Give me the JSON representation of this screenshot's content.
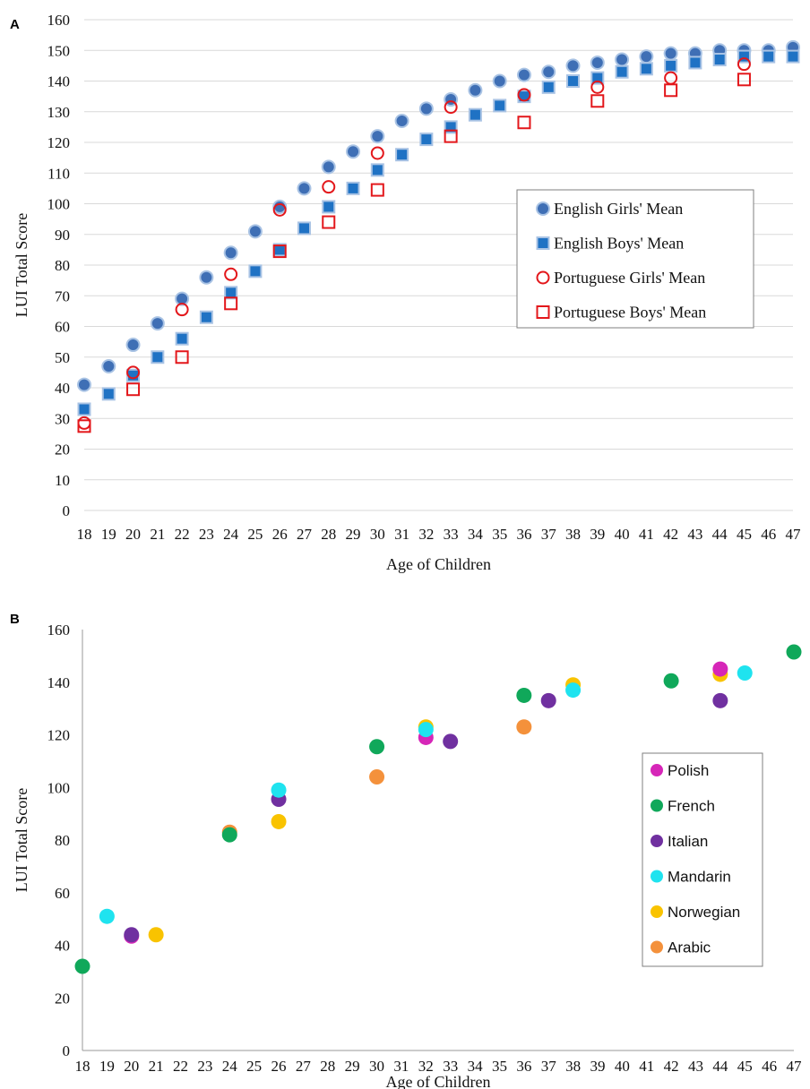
{
  "chart_data": [
    {
      "panel": "A",
      "type": "scatter",
      "xlabel": "Age of Children",
      "ylabel": "LUI Total Score",
      "xlim": [
        18,
        47
      ],
      "ylim": [
        0,
        160
      ],
      "y_ticks": [
        0,
        10,
        20,
        30,
        40,
        50,
        60,
        70,
        80,
        90,
        100,
        110,
        120,
        130,
        140,
        150,
        160
      ],
      "x_ticks": [
        18,
        19,
        20,
        21,
        22,
        23,
        24,
        25,
        26,
        27,
        28,
        29,
        30,
        31,
        32,
        33,
        34,
        35,
        36,
        37,
        38,
        39,
        40,
        41,
        42,
        43,
        44,
        45,
        46,
        47
      ],
      "grid": "horizontal",
      "legend_position": "center-right",
      "series": [
        {
          "name": "English Girls' Mean",
          "marker": "filled-circle",
          "color": "#3f6fb5",
          "x": [
            18,
            19,
            20,
            21,
            22,
            23,
            24,
            25,
            26,
            27,
            28,
            29,
            30,
            31,
            32,
            33,
            34,
            35,
            36,
            37,
            38,
            39,
            40,
            41,
            42,
            43,
            44,
            45,
            46,
            47
          ],
          "y": [
            41,
            47,
            54,
            61,
            69,
            76,
            84,
            91,
            99,
            105,
            112,
            117,
            122,
            127,
            131,
            134,
            137,
            140,
            142,
            143,
            145,
            146,
            147,
            148,
            149,
            149,
            150,
            150,
            150,
            151
          ]
        },
        {
          "name": "English Boys' Mean",
          "marker": "filled-square",
          "color": "#1f72c4",
          "x": [
            18,
            19,
            20,
            21,
            22,
            23,
            24,
            25,
            26,
            27,
            28,
            29,
            30,
            31,
            32,
            33,
            34,
            35,
            36,
            37,
            38,
            39,
            40,
            41,
            42,
            43,
            44,
            45,
            46,
            47
          ],
          "y": [
            33,
            38,
            44,
            50,
            56,
            63,
            71,
            78,
            85,
            92,
            99,
            105,
            111,
            116,
            121,
            125,
            129,
            132,
            135,
            138,
            140,
            141,
            143,
            144,
            145,
            146,
            147,
            148,
            148,
            148
          ]
        },
        {
          "name": "Portuguese Girls' Mean",
          "marker": "open-circle",
          "color": "#e3171b",
          "x": [
            18,
            20,
            22,
            24,
            26,
            28,
            30,
            33,
            36,
            39,
            42,
            45
          ],
          "y": [
            28.5,
            45,
            65.5,
            77,
            98,
            105.5,
            116.5,
            131.5,
            135.5,
            138,
            141,
            145.5
          ]
        },
        {
          "name": "Portuguese Boys' Mean",
          "marker": "open-square",
          "color": "#e3171b",
          "x": [
            18,
            20,
            22,
            24,
            26,
            28,
            30,
            33,
            36,
            39,
            42,
            45
          ],
          "y": [
            27.5,
            39.5,
            50,
            67.5,
            84.5,
            94,
            104.5,
            122,
            126.5,
            133.5,
            137,
            140.5
          ]
        }
      ]
    },
    {
      "panel": "B",
      "type": "scatter",
      "xlabel": "Age of Children",
      "ylabel": "LUI Total Score",
      "xlim": [
        18,
        47
      ],
      "ylim": [
        0,
        160
      ],
      "y_ticks": [
        0,
        20,
        40,
        60,
        80,
        100,
        120,
        140,
        160
      ],
      "x_ticks": [
        18,
        19,
        20,
        21,
        22,
        23,
        24,
        25,
        26,
        27,
        28,
        29,
        30,
        31,
        32,
        33,
        34,
        35,
        36,
        37,
        38,
        39,
        40,
        41,
        42,
        43,
        44,
        45,
        46,
        47
      ],
      "grid": "none",
      "legend_position": "right",
      "series": [
        {
          "name": "Arabic",
          "color": "#f4913b",
          "x": [
            24,
            30,
            36
          ],
          "y": [
            83,
            104,
            123
          ]
        },
        {
          "name": "Norwegian",
          "color": "#f9c300",
          "x": [
            21,
            26,
            32,
            38,
            44
          ],
          "y": [
            44,
            87,
            123,
            139,
            143
          ]
        },
        {
          "name": "Polish",
          "color": "#d626b8",
          "x": [
            20,
            32,
            44
          ],
          "y": [
            43.5,
            119,
            145
          ]
        },
        {
          "name": "Italian",
          "color": "#7030a0",
          "x": [
            20,
            26,
            33,
            37,
            44
          ],
          "y": [
            44,
            95.5,
            117.5,
            133,
            133
          ]
        },
        {
          "name": "Mandarin",
          "color": "#1fe3ef",
          "x": [
            19,
            26,
            32,
            38,
            45
          ],
          "y": [
            51,
            99,
            122,
            137,
            143.5
          ]
        },
        {
          "name": "French",
          "color": "#10a85a",
          "x": [
            18,
            24,
            30,
            36,
            42,
            47
          ],
          "y": [
            32,
            82,
            115.5,
            135,
            140.5,
            151.5
          ]
        }
      ],
      "legend_order": [
        "Polish",
        "French",
        "Italian",
        "Mandarin",
        "Norwegian",
        "Arabic"
      ]
    }
  ]
}
